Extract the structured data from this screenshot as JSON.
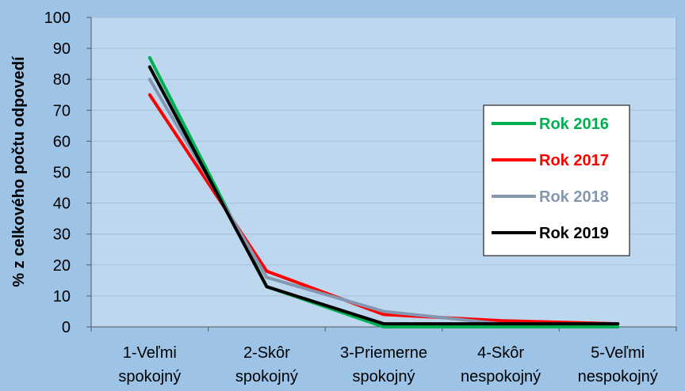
{
  "chart_data": {
    "type": "line",
    "title": "",
    "xlabel": "",
    "ylabel": "%  z celkového počtu odpovedí",
    "ylim": [
      0,
      100
    ],
    "yticks": [
      0,
      10,
      20,
      30,
      40,
      50,
      60,
      70,
      80,
      90,
      100
    ],
    "grid": "horizontal",
    "legend_position": "right",
    "categories": [
      [
        "1-Veľmi",
        "spokojný"
      ],
      [
        "2-Skôr",
        "spokojný"
      ],
      [
        "3-Priemerne",
        "spokojný"
      ],
      [
        "4-Skôr",
        "nespokojný"
      ],
      [
        "5-Veľmi",
        "nespokojný"
      ]
    ],
    "series": [
      {
        "name": "Rok 2016",
        "color": "#00B050",
        "values": [
          87,
          13,
          0,
          0,
          0
        ]
      },
      {
        "name": "Rok 2017",
        "color": "#FF0000",
        "values": [
          75,
          18,
          4,
          2,
          1
        ]
      },
      {
        "name": "Rok 2018",
        "color": "#8497B0",
        "values": [
          80,
          16,
          5,
          1,
          1
        ]
      },
      {
        "name": "Rok 2019",
        "color": "#000000",
        "values": [
          84,
          13,
          1,
          1,
          1
        ]
      }
    ],
    "colors": {
      "background": "#9DC3E6",
      "plot_area": "#BDD7EE",
      "gridline": "#A6BFD9",
      "axis": "#595959",
      "text": "#000000"
    }
  }
}
